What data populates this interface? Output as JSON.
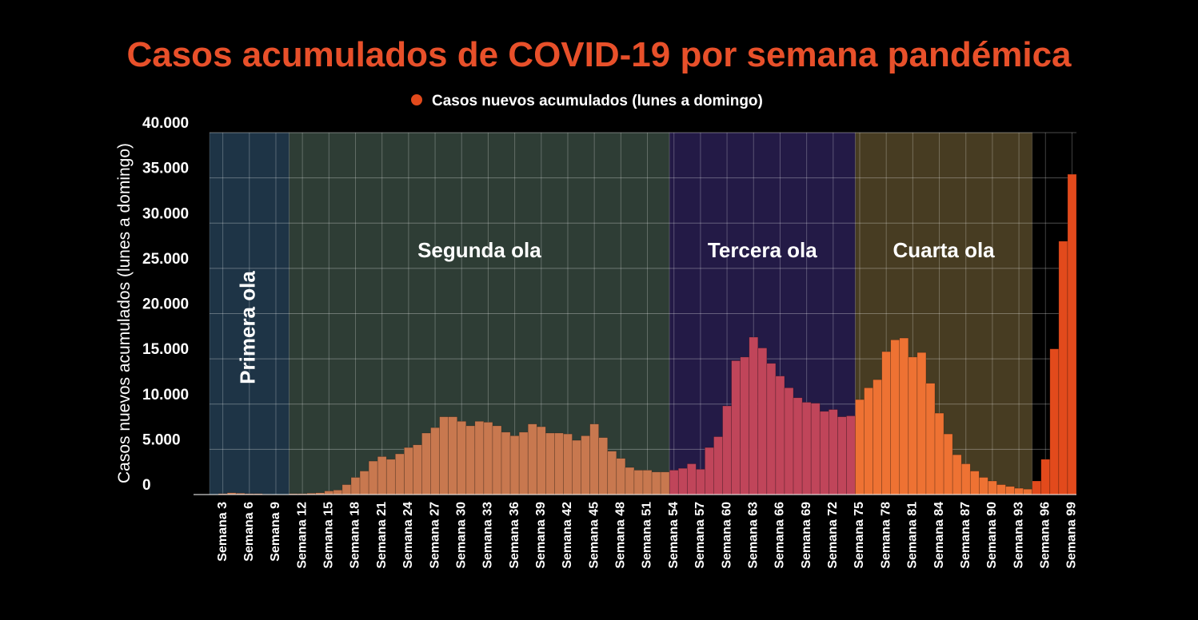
{
  "chart_data": {
    "type": "bar",
    "title": "Casos acumulados de COVID-19 por semana pandémica",
    "y_label": "Casos nuevos acumulados (lunes a domingo)",
    "legend": "top",
    "grid": true,
    "categories": [
      null,
      "Semana 3",
      null,
      null,
      "Semana 6",
      null,
      null,
      "Semana 9",
      null,
      null,
      "Semana 12",
      null,
      null,
      "Semana 15",
      null,
      null,
      "Semana 18",
      null,
      null,
      "Semana 21",
      null,
      null,
      "Semana 24",
      null,
      null,
      "Semana 27",
      null,
      null,
      "Semana 30",
      null,
      null,
      "Semana 33",
      null,
      null,
      "Semana 36",
      null,
      null,
      "Semana 39",
      null,
      null,
      "Semana 42",
      null,
      null,
      "Semana 45",
      null,
      null,
      "Semana 48",
      null,
      null,
      "Semana 51",
      null,
      null,
      "Semana 54",
      null,
      null,
      "Semana 57",
      null,
      null,
      "Semana 60",
      null,
      null,
      "Semana 63",
      null,
      null,
      "Semana 66",
      null,
      null,
      "Semana 69",
      null,
      null,
      "Semana 72",
      null,
      null,
      "Semana 75",
      null,
      null,
      "Semana 78",
      null,
      null,
      "Semana 81",
      null,
      null,
      "Semana 84",
      null,
      null,
      "Semana 87",
      null,
      null,
      "Semana 90",
      null,
      null,
      "Semana 93",
      null,
      null,
      "Semana 96",
      null,
      null,
      "Semana 99"
    ],
    "series": [
      {
        "name": "Casos nuevos acumulados (lunes a domingo)",
        "color": "#e24a1c",
        "values": [
          0,
          100,
          200,
          150,
          100,
          100,
          50,
          0,
          0,
          100,
          100,
          150,
          200,
          400,
          500,
          1100,
          1900,
          2600,
          3700,
          4200,
          3900,
          4500,
          5200,
          5500,
          6800,
          7400,
          8600,
          8600,
          8100,
          7600,
          8100,
          8000,
          7600,
          6900,
          6500,
          6900,
          7800,
          7500,
          6800,
          6800,
          6700,
          6000,
          6500,
          7800,
          6300,
          4800,
          4000,
          3000,
          2700,
          2700,
          2500,
          2500,
          2700,
          2900,
          3400,
          2800,
          5200,
          6400,
          9800,
          14800,
          15200,
          17400,
          16200,
          14500,
          13100,
          11800,
          10700,
          10200,
          10100,
          9200,
          9400,
          8600,
          8700,
          10500,
          11800,
          12700,
          15800,
          17100,
          17300,
          15200,
          15700,
          12300,
          9000,
          6700,
          4400,
          3400,
          2600,
          1900,
          1500,
          1100,
          900,
          700,
          600,
          1500,
          3900,
          16100,
          28000,
          35400
        ]
      }
    ],
    "waves": [
      {
        "text": "Primera ola",
        "band_color": "#1e3446",
        "bar_color": "#c8784f"
      },
      {
        "text": "Segunda ola",
        "band_color": "#2e3d35",
        "bar_color": "#c8784f"
      },
      {
        "text": "Tercera ola",
        "band_color": "#231a46",
        "bar_color": "#c0455a"
      },
      {
        "text": "Cuarta ola",
        "band_color": "#473c22",
        "bar_color": "#ee7233"
      }
    ],
    "ylim": [
      0,
      40000
    ],
    "yticks": [
      0,
      {
        "value": 5000,
        "label": "5.000"
      },
      {
        "value": 10000,
        "label": "10.000"
      },
      {
        "value": 15000,
        "label": "15.000"
      },
      {
        "value": 20000,
        "label": "20.000"
      },
      {
        "value": 25000,
        "label": "25.000"
      },
      {
        "value": 30000,
        "label": "30.000"
      },
      {
        "value": 35000,
        "label": "35.000"
      },
      {
        "value": 40000,
        "label": "40.000"
      }
    ]
  }
}
